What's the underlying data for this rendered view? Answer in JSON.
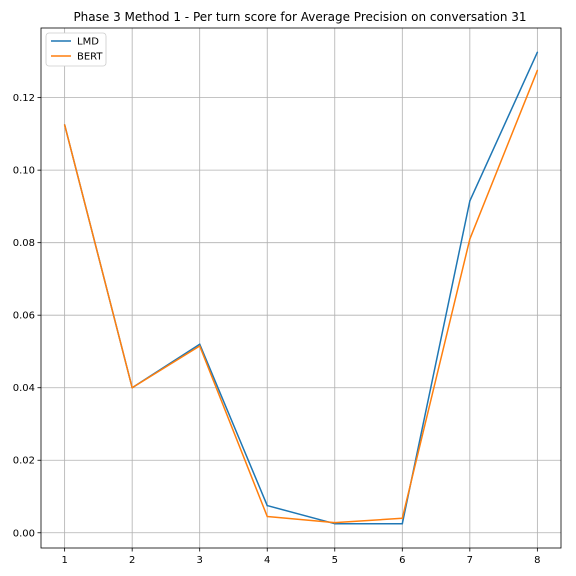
{
  "chart_data": {
    "type": "line",
    "title": "Phase 3 Method 1 - Per turn score for Average Precision on conversation 31",
    "xlabel": "",
    "ylabel": "",
    "x": [
      1,
      2,
      3,
      4,
      5,
      6,
      7,
      8
    ],
    "xticks": [
      "1",
      "2",
      "3",
      "4",
      "5",
      "6",
      "7",
      "8"
    ],
    "yticks": [
      "0.00",
      "0.02",
      "0.04",
      "0.06",
      "0.08",
      "0.10",
      "0.12"
    ],
    "xlim": [
      0.65,
      8.35
    ],
    "ylim": [
      -0.0042,
      0.1392
    ],
    "grid": true,
    "legend_position": "upper left",
    "series": [
      {
        "name": "LMD",
        "color": "#1f77b4",
        "values": [
          0.1125,
          0.04,
          0.052,
          0.0075,
          0.0025,
          0.0025,
          0.0915,
          0.1325
        ]
      },
      {
        "name": "BERT",
        "color": "#ff7f0e",
        "values": [
          0.1125,
          0.04,
          0.0515,
          0.0045,
          0.0028,
          0.004,
          0.081,
          0.1275
        ]
      }
    ]
  }
}
